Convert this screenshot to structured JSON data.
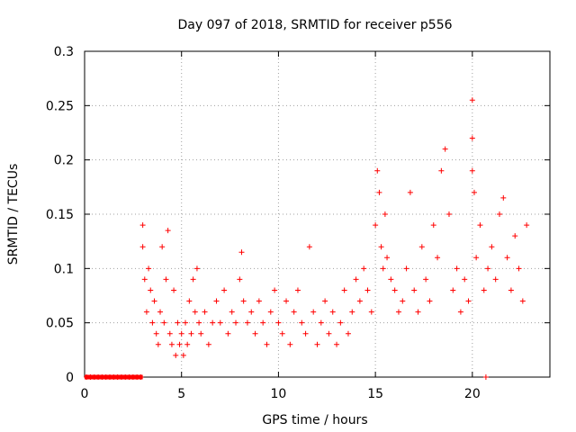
{
  "chart_data": {
    "type": "scatter",
    "title": "Day 097 of 2018, SRMTID for receiver p556",
    "xlabel": "GPS time / hours",
    "ylabel": "SRMTID / TECUs",
    "xlim": [
      0,
      24
    ],
    "ylim": [
      0,
      0.3
    ],
    "xticks": [
      0,
      5,
      10,
      15,
      20
    ],
    "xtick_labels": [
      "0",
      "5",
      "10",
      "15",
      "20"
    ],
    "yticks": [
      0,
      0.05,
      0.1,
      0.15,
      0.2,
      0.25,
      0.3
    ],
    "ytick_labels": [
      "0",
      "0.05",
      "0.1",
      "0.15",
      "0.2",
      "0.25",
      "0.3"
    ],
    "grid": true,
    "marker": "+",
    "color": "#ff0000",
    "series": [
      {
        "name": "SRMTID",
        "x": [
          0.1,
          0.3,
          0.5,
          0.7,
          0.9,
          1.1,
          1.3,
          1.5,
          1.7,
          1.9,
          2.1,
          2.3,
          2.5,
          2.7,
          2.9,
          3.0,
          3.0,
          3.1,
          3.2,
          3.3,
          3.4,
          3.5,
          3.6,
          3.7,
          3.8,
          3.9,
          4.0,
          4.1,
          4.2,
          4.3,
          4.4,
          4.5,
          4.6,
          4.7,
          4.8,
          4.9,
          5.0,
          5.1,
          5.2,
          5.3,
          5.4,
          5.5,
          5.6,
          5.7,
          5.8,
          5.9,
          6.0,
          6.2,
          6.4,
          6.6,
          6.8,
          7.0,
          7.2,
          7.4,
          7.6,
          7.8,
          8.0,
          8.1,
          8.2,
          8.4,
          8.6,
          8.8,
          9.0,
          9.2,
          9.4,
          9.6,
          9.8,
          10.0,
          10.2,
          10.4,
          10.6,
          10.8,
          11.0,
          11.2,
          11.4,
          11.6,
          11.8,
          12.0,
          12.2,
          12.4,
          12.6,
          12.8,
          13.0,
          13.2,
          13.4,
          13.6,
          13.8,
          14.0,
          14.2,
          14.4,
          14.6,
          14.8,
          15.0,
          15.1,
          15.2,
          15.3,
          15.4,
          15.5,
          15.6,
          15.8,
          16.0,
          16.2,
          16.4,
          16.6,
          16.8,
          17.0,
          17.2,
          17.4,
          17.6,
          17.8,
          18.0,
          18.2,
          18.4,
          18.6,
          18.8,
          19.0,
          19.2,
          19.4,
          19.6,
          19.8,
          20.0,
          20.0,
          20.0,
          20.1,
          20.2,
          20.4,
          20.6,
          20.8,
          21.0,
          21.2,
          21.4,
          21.6,
          21.8,
          22.0,
          22.2,
          22.4,
          22.6,
          22.8,
          20.7
        ],
        "y": [
          0,
          0,
          0,
          0,
          0,
          0,
          0,
          0,
          0,
          0,
          0,
          0,
          0,
          0,
          0,
          0.14,
          0.12,
          0.09,
          0.06,
          0.1,
          0.08,
          0.05,
          0.07,
          0.04,
          0.03,
          0.06,
          0.12,
          0.05,
          0.09,
          0.135,
          0.04,
          0.03,
          0.08,
          0.02,
          0.05,
          0.03,
          0.04,
          0.02,
          0.05,
          0.03,
          0.07,
          0.04,
          0.09,
          0.06,
          0.1,
          0.05,
          0.04,
          0.06,
          0.03,
          0.05,
          0.07,
          0.05,
          0.08,
          0.04,
          0.06,
          0.05,
          0.09,
          0.115,
          0.07,
          0.05,
          0.06,
          0.04,
          0.07,
          0.05,
          0.03,
          0.06,
          0.08,
          0.05,
          0.04,
          0.07,
          0.03,
          0.06,
          0.08,
          0.05,
          0.04,
          0.12,
          0.06,
          0.03,
          0.05,
          0.07,
          0.04,
          0.06,
          0.03,
          0.05,
          0.08,
          0.04,
          0.06,
          0.09,
          0.07,
          0.1,
          0.08,
          0.06,
          0.14,
          0.19,
          0.17,
          0.12,
          0.1,
          0.15,
          0.11,
          0.09,
          0.08,
          0.06,
          0.07,
          0.1,
          0.17,
          0.08,
          0.06,
          0.12,
          0.09,
          0.07,
          0.14,
          0.11,
          0.19,
          0.21,
          0.15,
          0.08,
          0.1,
          0.06,
          0.09,
          0.07,
          0.255,
          0.22,
          0.19,
          0.17,
          0.11,
          0.14,
          0.08,
          0.1,
          0.12,
          0.09,
          0.15,
          0.165,
          0.11,
          0.08,
          0.13,
          0.1,
          0.07,
          0.14,
          0
        ]
      }
    ]
  }
}
